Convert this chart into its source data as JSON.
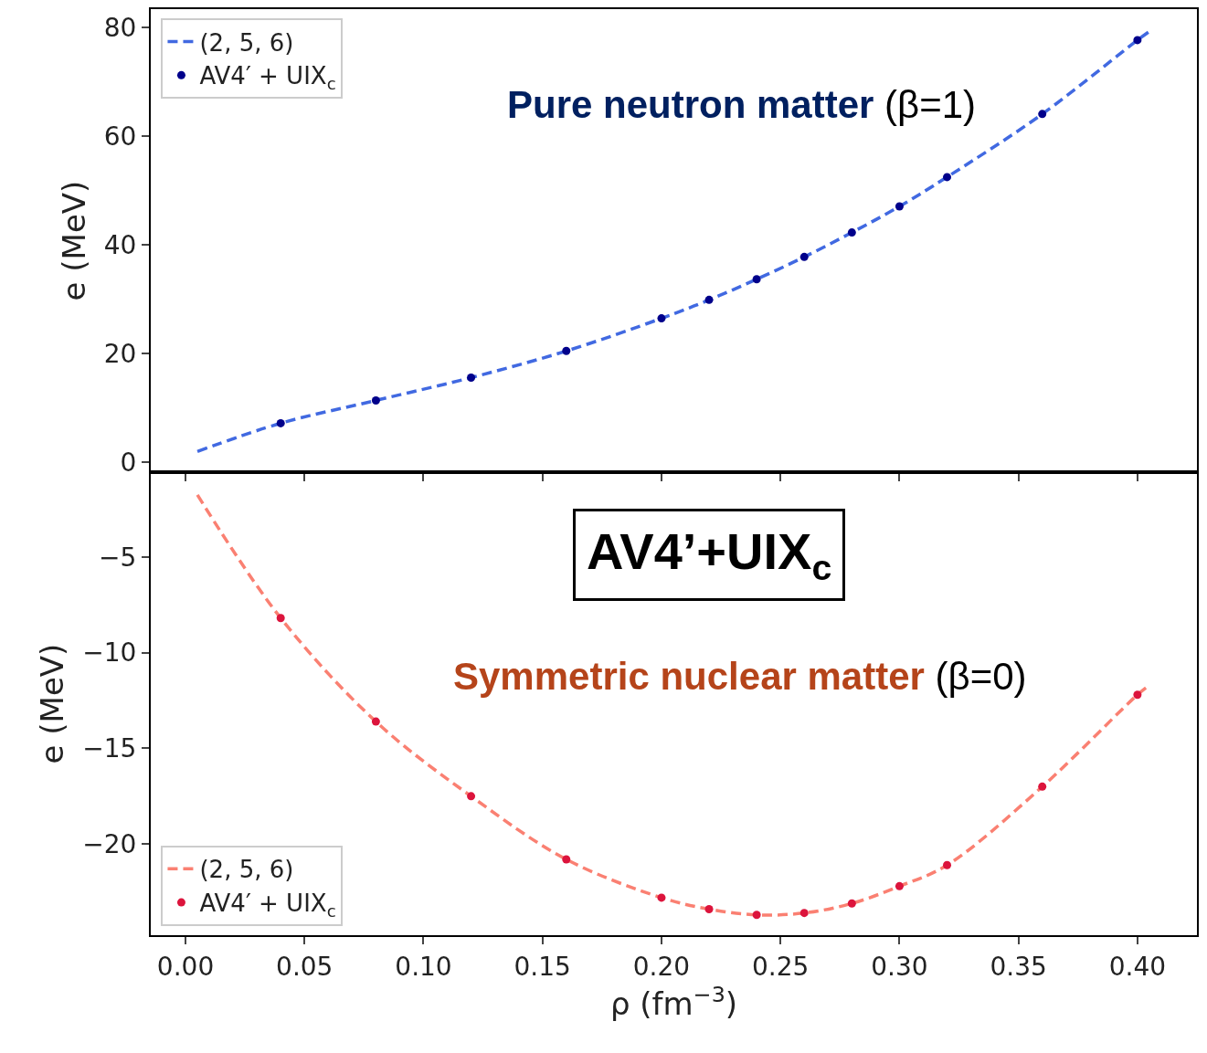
{
  "chart_data": [
    {
      "type": "line",
      "ylabel": "e (MeV)",
      "xlim": [
        -0.0146,
        0.425
      ],
      "ylim": [
        -1.8,
        83.4
      ],
      "xticks": [
        {
          "value": 0,
          "label": null
        },
        {
          "value": 0.05,
          "label": null
        },
        {
          "value": 0.1,
          "label": null
        },
        {
          "value": 0.15,
          "label": null
        },
        {
          "value": 0.2,
          "label": null
        },
        {
          "value": 0.25,
          "label": null
        },
        {
          "value": 0.3,
          "label": null
        },
        {
          "value": 0.35,
          "label": null
        },
        {
          "value": 0.4,
          "label": null
        }
      ],
      "yticks": [
        0,
        20,
        40,
        60,
        80
      ],
      "tick_labels": "y",
      "grid": false,
      "legend": "top left",
      "annotations": [
        "Pure neutron matter",
        "(β=1)"
      ],
      "series": [
        {
          "name": "(2, 5, 6)",
          "line_style": "dashed",
          "marker": "none",
          "color": "#4169e1",
          "x": [
            0.005,
            0.04,
            0.08,
            0.12,
            0.16,
            0.2,
            0.22,
            0.24,
            0.26,
            0.28,
            0.3,
            0.32,
            0.36,
            0.4,
            0.405
          ],
          "values": [
            2.0,
            7.2,
            11.4,
            15.6,
            20.5,
            26.5,
            29.9,
            33.7,
            37.8,
            42.3,
            47.1,
            52.5,
            64.1,
            77.7,
            79.3
          ]
        },
        {
          "name": "AV4′ + UIX$_{c}$",
          "type": "scatter",
          "marker": "circle",
          "color": "#00008b",
          "x": [
            0.04,
            0.08,
            0.12,
            0.16,
            0.2,
            0.22,
            0.24,
            0.26,
            0.28,
            0.3,
            0.32,
            0.36,
            0.4
          ],
          "values": [
            7.2,
            11.4,
            15.6,
            20.5,
            26.5,
            29.9,
            33.7,
            37.8,
            42.3,
            47.1,
            52.5,
            64.1,
            77.7
          ]
        }
      ]
    },
    {
      "type": "line",
      "ylabel": "e (MeV)",
      "xlabel": "ρ (fm$^{−3}$)",
      "xlim": [
        -0.0146,
        0.425
      ],
      "ylim": [
        -24.76,
        -0.57
      ],
      "xticks": [
        {
          "value": 0,
          "label": "0.00"
        },
        0.05,
        {
          "value": 0.1,
          "label": "0.10"
        },
        0.15,
        {
          "value": 0.2,
          "label": "0.20"
        },
        0.25,
        {
          "value": 0.3,
          "label": "0.30"
        },
        0.35,
        {
          "value": 0.4,
          "label": "0.40"
        }
      ],
      "yticks": [
        {
          "value": -5,
          "label": "−5"
        },
        {
          "value": -10,
          "label": "−10"
        },
        {
          "value": -15,
          "label": "−15"
        },
        {
          "value": -20,
          "label": "−20"
        }
      ],
      "grid": false,
      "legend": "bottom left",
      "annotations": [
        "AV4’+UIX$_{c}$",
        "Symmetric nuclear matter",
        "(β=0)"
      ],
      "series": [
        {
          "name": "(2, 5, 6)",
          "line_style": "dashed",
          "marker": "none",
          "color": "#fa8072",
          "x": [
            0.005,
            0.04,
            0.08,
            0.12,
            0.16,
            0.2,
            0.22,
            0.24,
            0.26,
            0.28,
            0.3,
            0.32,
            0.36,
            0.4,
            0.405
          ],
          "values": [
            -1.76,
            -8.19,
            -13.6,
            -17.5,
            -20.8,
            -22.8,
            -23.4,
            -23.7,
            -23.6,
            -23.1,
            -22.2,
            -21.1,
            -17.0,
            -12.2,
            -11.7
          ]
        },
        {
          "name": "AV4′ + UIX$_{c}$",
          "type": "scatter",
          "marker": "circle",
          "color": "#dc143c",
          "x": [
            0.04,
            0.08,
            0.12,
            0.16,
            0.2,
            0.22,
            0.24,
            0.26,
            0.28,
            0.3,
            0.32,
            0.36,
            0.4
          ],
          "values": [
            -8.19,
            -13.6,
            -17.5,
            -20.8,
            -22.8,
            -23.4,
            -23.7,
            -23.6,
            -23.1,
            -22.2,
            -21.1,
            -17.0,
            -12.2
          ]
        }
      ]
    }
  ]
}
